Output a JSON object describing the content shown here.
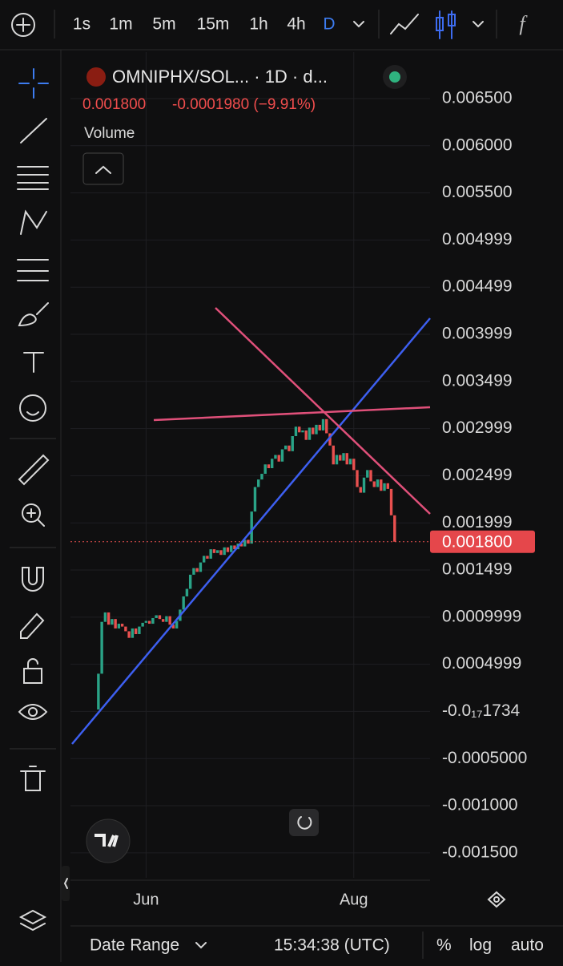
{
  "toolbar": {
    "intervals": [
      "1s",
      "1m",
      "5m",
      "15m",
      "1h",
      "4h",
      "D"
    ],
    "active": "D"
  },
  "legend": {
    "symbol": "OMNIPHX/SOL... · 1D · d...",
    "last": "0.001800",
    "change": "-0.0001980 (−9.91%)",
    "volume": "Volume"
  },
  "chart": {
    "ylim": [
      -0.001765,
      0.006993
    ],
    "xlim": [
      -8.2,
      97.4
    ],
    "yticks": [
      {
        "value": 0.0065,
        "label": "0.006500"
      },
      {
        "value": 0.006,
        "label": "0.006000"
      },
      {
        "value": 0.0055,
        "label": "0.005500"
      },
      {
        "value": 0.005,
        "label": "0.004999"
      },
      {
        "value": 0.0045,
        "label": "0.004499"
      },
      {
        "value": 0.004,
        "label": "0.003999"
      },
      {
        "value": 0.0035,
        "label": "0.003499"
      },
      {
        "value": 0.003,
        "label": "0.002999"
      },
      {
        "value": 0.0025,
        "label": "0.002499"
      },
      {
        "value": 0.002,
        "label": "0.001999"
      },
      {
        "value": 0.0015,
        "label": "0.001499"
      },
      {
        "value": 0.001,
        "label": "0.0009999"
      },
      {
        "value": 0.0005,
        "label": "0.0004999"
      },
      {
        "value": 0,
        "label": "-0.0₁₇1734"
      },
      {
        "value": -0.0005,
        "label": "-0.0005000"
      },
      {
        "value": -0.001,
        "label": "-0.001000"
      },
      {
        "value": -0.0015,
        "label": "-0.001500"
      }
    ],
    "xticks": [
      {
        "value": 14,
        "label": "Jun"
      },
      {
        "value": 75,
        "label": "Aug"
      }
    ],
    "candles": {
      "first_open": 2e-05,
      "close": [
        0.0004,
        0.00095,
        0.00105,
        0.00092,
        0.00098,
        0.00088,
        0.00093,
        0.0009,
        0.00085,
        0.00078,
        0.00088,
        0.00082,
        0.0009,
        0.00094,
        0.00096,
        0.00093,
        0.00099,
        0.00102,
        0.00098,
        0.00095,
        0.00101,
        0.00092,
        0.00088,
        0.00096,
        0.00108,
        0.00122,
        0.0013,
        0.00145,
        0.00152,
        0.00148,
        0.00158,
        0.00165,
        0.00162,
        0.00172,
        0.00168,
        0.00171,
        0.00166,
        0.00174,
        0.00169,
        0.00176,
        0.00172,
        0.00178,
        0.00175,
        0.00182,
        0.00178,
        0.00212,
        0.00238,
        0.00246,
        0.00252,
        0.00262,
        0.00258,
        0.00268,
        0.00272,
        0.00265,
        0.00278,
        0.00282,
        0.00276,
        0.00292,
        0.00302,
        0.00296,
        0.00298,
        0.00288,
        0.00301,
        0.00294,
        0.00304,
        0.00298,
        0.0031,
        0.00295,
        0.00282,
        0.00262,
        0.00272,
        0.00266,
        0.00274,
        0.00262,
        0.00268,
        0.00256,
        0.00238,
        0.00232,
        0.00248,
        0.00256,
        0.00244,
        0.00238,
        0.00246,
        0.00234,
        0.00242,
        0.00236,
        0.00208,
        0.0018
      ]
    },
    "price_label": "0.001800"
  },
  "bottom": {
    "date_range": "Date Range",
    "time": "15:34:38 (UTC)",
    "percent": "%",
    "log": "log",
    "auto": "auto"
  }
}
